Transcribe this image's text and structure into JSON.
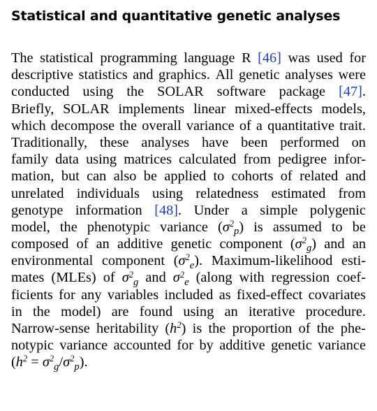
{
  "section": {
    "heading": "Statistical and quantitative genetic analyses"
  },
  "paragraph": {
    "lines": [
      [
        "The",
        "statistical",
        "programming",
        "language",
        "R",
        "[46]",
        "was",
        "used",
        "for"
      ],
      [
        "descriptive",
        "statistics",
        "and",
        "graphics.",
        "All",
        "genetic",
        "analyses",
        "were"
      ],
      [
        "conducted",
        "using",
        "the",
        "SOLAR",
        "software",
        "package",
        "[47]."
      ],
      [
        "Briefly,",
        "SOLAR",
        "implements",
        "linear",
        "mixed-effects",
        "models,"
      ],
      [
        "which",
        "decompose",
        "the",
        "overall",
        "variance",
        "of",
        "a",
        "quantitative",
        "trait."
      ],
      [
        "Traditionally,",
        "these",
        "analyses",
        "have",
        "been",
        "performed",
        "on"
      ],
      [
        "family",
        "data",
        "using",
        "matrices",
        "calculated",
        "from",
        "pedigree",
        "infor-"
      ],
      [
        "mation,",
        "but",
        "can",
        "also",
        "be",
        "applied",
        "to",
        "cohorts",
        "of",
        "related",
        "and"
      ],
      [
        "unrelated",
        "individuals",
        "using",
        "relatedness",
        "estimated",
        "from"
      ],
      [
        "genotype",
        "information",
        "[48].",
        "Under",
        "a",
        "simple",
        "polygenic"
      ],
      [
        "model,",
        "the",
        "phenotypic",
        "variance",
        "(σ²p)",
        "is",
        "assumed",
        "to",
        "be"
      ],
      [
        "composed",
        "of",
        "an",
        "additive",
        "genetic",
        "component",
        "(σ²g)",
        "and",
        "an"
      ],
      [
        "environmental",
        "component",
        "(σ²e).",
        "Maximum-likelihood",
        "esti-"
      ],
      [
        "mates",
        "(MLEs)",
        "of",
        "σ²g",
        "and",
        "σ²e",
        "(along",
        "with",
        "regression",
        "coef-"
      ],
      [
        "ficients",
        "for",
        "any",
        "variables",
        "included",
        "as",
        "fixed-effect",
        "covariates"
      ],
      [
        "in",
        "the",
        "model)",
        "are",
        "found",
        "using",
        "an",
        "iterative",
        "procedure."
      ],
      [
        "Narrow-sense",
        "heritability",
        "(h²)",
        "is",
        "the",
        "proportion",
        "of",
        "the",
        "phe-"
      ],
      [
        "notypic",
        "variance",
        "accounted",
        "for",
        "by",
        "additive",
        "genetic",
        "variance"
      ],
      [
        "(h² = σ²g/σ²p)."
      ]
    ],
    "citations": [
      "[46]",
      "[47].",
      "[48]."
    ]
  }
}
